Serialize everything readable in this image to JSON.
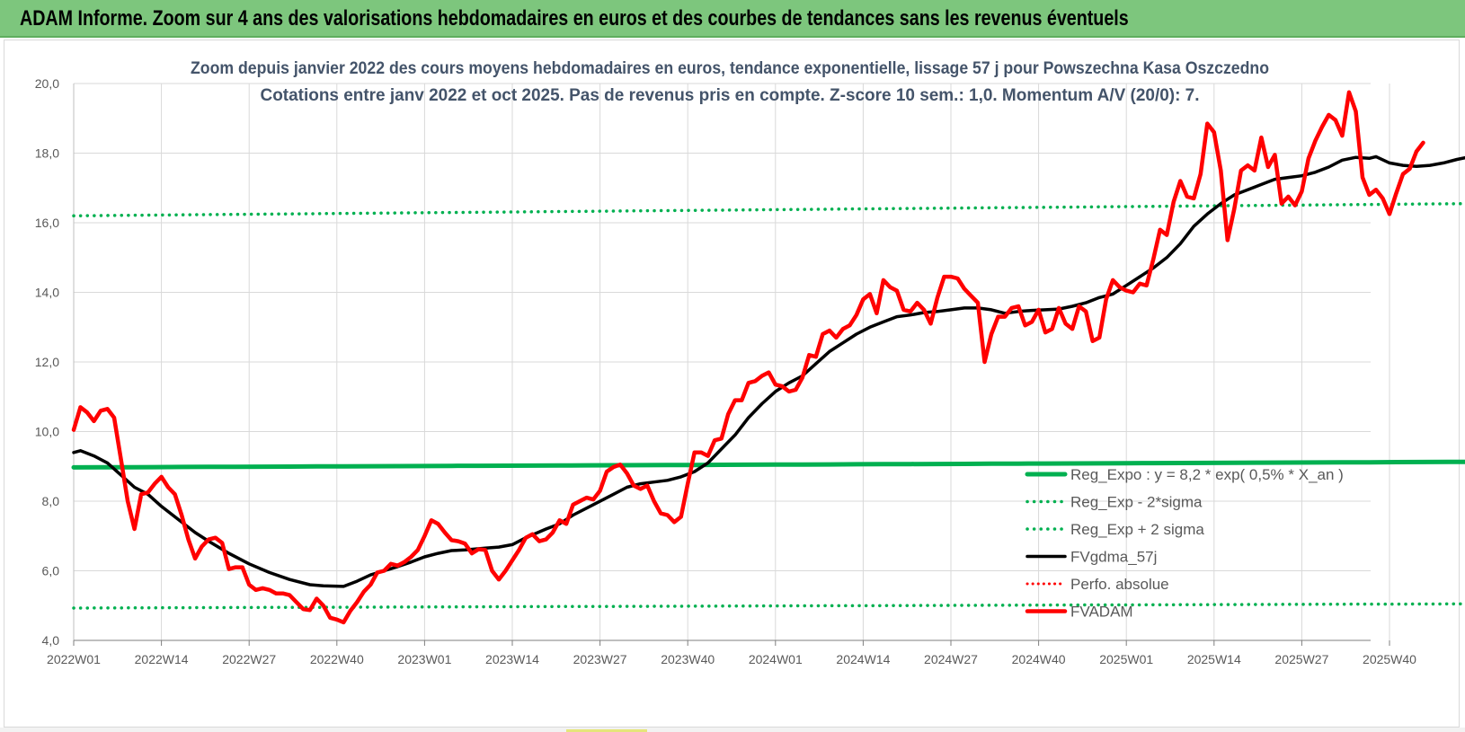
{
  "header": {
    "title": "ADAM Informe. Zoom sur 4 ans des valorisations hebdomadaires en euros et des courbes de tendances sans les revenus éventuels"
  },
  "colors": {
    "header_bg": "#7dc67d",
    "reg_expo": "#00b050",
    "fvgdma": "#000000",
    "fvadam": "#ff0000",
    "perfo": "#ff0000",
    "grid": "#d9d9d9"
  },
  "chart_data": {
    "type": "line",
    "title": "Zoom depuis janvier 2022 des cours moyens hebdomadaires en euros, tendance exponentielle, lissage 57 j pour Powszechna Kasa Oszczedno",
    "subtitle": "Cotations entre janv 2022 et oct 2025. Pas de revenus pris en compte. Z-score 10 sem.: 1,0. Momentum A/V (20/0): 7.",
    "xlabel": "",
    "ylabel": "",
    "ylim": [
      4.0,
      20.0
    ],
    "y_ticks": [
      "4,0",
      "6,0",
      "8,0",
      "10,0",
      "12,0",
      "14,0",
      "16,0",
      "18,0",
      "20,0"
    ],
    "x_ticks": [
      "2022W01",
      "2022W14",
      "2022W27",
      "2022W40",
      "2023W01",
      "2023W14",
      "2023W27",
      "2023W40",
      "2024W01",
      "2024W14",
      "2024W27",
      "2024W40",
      "2025W01",
      "2025W14",
      "2025W27",
      "2025W40"
    ],
    "grid": true,
    "legend_position": "bottom-right",
    "series": [
      {
        "name": "Reg_Expo : y = 8,2 * exp( 0,5% *  X_an )",
        "style": "solid-green",
        "start": 8.97,
        "end": 9.13
      },
      {
        "name": "Reg_Exp - 2*sigma",
        "style": "dotted-green",
        "start": 4.93,
        "end": 5.05
      },
      {
        "name": "Reg_Exp + 2 sigma",
        "style": "dotted-green",
        "start": 16.2,
        "end": 16.55
      },
      {
        "name": "FVgdma_57j",
        "style": "solid-black",
        "points": [
          [
            0,
            9.4
          ],
          [
            1,
            9.45
          ],
          [
            3,
            9.3
          ],
          [
            5,
            9.1
          ],
          [
            7,
            8.75
          ],
          [
            9,
            8.4
          ],
          [
            11,
            8.2
          ],
          [
            13,
            7.85
          ],
          [
            16,
            7.4
          ],
          [
            18,
            7.1
          ],
          [
            20,
            6.85
          ],
          [
            23,
            6.5
          ],
          [
            26,
            6.2
          ],
          [
            29,
            5.95
          ],
          [
            32,
            5.75
          ],
          [
            35,
            5.6
          ],
          [
            37,
            5.57
          ],
          [
            40,
            5.55
          ],
          [
            42,
            5.7
          ],
          [
            44,
            5.88
          ],
          [
            46,
            6.0
          ],
          [
            48,
            6.12
          ],
          [
            50,
            6.25
          ],
          [
            52,
            6.4
          ],
          [
            54,
            6.5
          ],
          [
            56,
            6.58
          ],
          [
            58,
            6.6
          ],
          [
            61,
            6.65
          ],
          [
            63,
            6.68
          ],
          [
            65,
            6.75
          ],
          [
            67,
            6.95
          ],
          [
            70,
            7.2
          ],
          [
            72,
            7.35
          ],
          [
            74,
            7.6
          ],
          [
            77,
            7.9
          ],
          [
            80,
            8.2
          ],
          [
            82,
            8.4
          ],
          [
            84,
            8.5
          ],
          [
            86,
            8.55
          ],
          [
            88,
            8.6
          ],
          [
            90,
            8.7
          ],
          [
            92,
            8.85
          ],
          [
            94,
            9.1
          ],
          [
            96,
            9.5
          ],
          [
            98,
            9.9
          ],
          [
            100,
            10.4
          ],
          [
            102,
            10.8
          ],
          [
            104,
            11.15
          ],
          [
            106,
            11.4
          ],
          [
            108,
            11.6
          ],
          [
            110,
            11.95
          ],
          [
            112,
            12.3
          ],
          [
            114,
            12.55
          ],
          [
            116,
            12.8
          ],
          [
            118,
            13.0
          ],
          [
            120,
            13.15
          ],
          [
            122,
            13.3
          ],
          [
            124,
            13.35
          ],
          [
            126,
            13.42
          ],
          [
            128,
            13.45
          ],
          [
            130,
            13.5
          ],
          [
            132,
            13.55
          ],
          [
            134,
            13.55
          ],
          [
            136,
            13.5
          ],
          [
            138,
            13.4
          ],
          [
            140,
            13.45
          ],
          [
            142,
            13.48
          ],
          [
            144,
            13.5
          ],
          [
            146,
            13.52
          ],
          [
            148,
            13.6
          ],
          [
            150,
            13.7
          ],
          [
            152,
            13.85
          ],
          [
            154,
            13.95
          ],
          [
            156,
            14.2
          ],
          [
            158,
            14.45
          ],
          [
            160,
            14.7
          ],
          [
            162,
            15.0
          ],
          [
            164,
            15.4
          ],
          [
            166,
            15.9
          ],
          [
            168,
            16.25
          ],
          [
            170,
            16.55
          ],
          [
            172,
            16.8
          ],
          [
            174,
            16.95
          ],
          [
            176,
            17.1
          ],
          [
            178,
            17.25
          ],
          [
            180,
            17.3
          ],
          [
            182,
            17.35
          ],
          [
            184,
            17.45
          ],
          [
            186,
            17.6
          ],
          [
            188,
            17.8
          ],
          [
            190,
            17.88
          ],
          [
            192,
            17.85
          ],
          [
            193,
            17.9
          ],
          [
            195,
            17.72
          ],
          [
            197,
            17.65
          ],
          [
            199,
            17.62
          ],
          [
            201,
            17.65
          ],
          [
            203,
            17.72
          ],
          [
            205,
            17.82
          ],
          [
            207,
            17.9
          ]
        ]
      },
      {
        "name": "Perfo. absolue",
        "style": "dotted-red",
        "points": []
      },
      {
        "name": "FVADAM",
        "style": "solid-red-thick",
        "points": [
          [
            0,
            10.05
          ],
          [
            1,
            10.7
          ],
          [
            2,
            10.55
          ],
          [
            3,
            10.3
          ],
          [
            4,
            10.6
          ],
          [
            5,
            10.65
          ],
          [
            6,
            10.4
          ],
          [
            7,
            9.2
          ],
          [
            8,
            8.0
          ],
          [
            9,
            7.2
          ],
          [
            10,
            8.2
          ],
          [
            11,
            8.25
          ],
          [
            12,
            8.5
          ],
          [
            13,
            8.7
          ],
          [
            14,
            8.4
          ],
          [
            15,
            8.2
          ],
          [
            16,
            7.6
          ],
          [
            17,
            6.9
          ],
          [
            18,
            6.35
          ],
          [
            19,
            6.7
          ],
          [
            20,
            6.9
          ],
          [
            21,
            6.95
          ],
          [
            22,
            6.8
          ],
          [
            23,
            6.05
          ],
          [
            24,
            6.1
          ],
          [
            25,
            6.1
          ],
          [
            26,
            5.6
          ],
          [
            27,
            5.45
          ],
          [
            28,
            5.5
          ],
          [
            29,
            5.45
          ],
          [
            30,
            5.35
          ],
          [
            31,
            5.35
          ],
          [
            32,
            5.3
          ],
          [
            33,
            5.1
          ],
          [
            34,
            4.9
          ],
          [
            35,
            4.87
          ],
          [
            36,
            5.2
          ],
          [
            37,
            5.0
          ],
          [
            38,
            4.65
          ],
          [
            39,
            4.6
          ],
          [
            40,
            4.52
          ],
          [
            41,
            4.85
          ],
          [
            42,
            5.1
          ],
          [
            43,
            5.4
          ],
          [
            44,
            5.6
          ],
          [
            45,
            5.95
          ],
          [
            46,
            6.0
          ],
          [
            47,
            6.2
          ],
          [
            48,
            6.15
          ],
          [
            49,
            6.25
          ],
          [
            50,
            6.4
          ],
          [
            51,
            6.6
          ],
          [
            52,
            7.0
          ],
          [
            53,
            7.45
          ],
          [
            54,
            7.35
          ],
          [
            55,
            7.1
          ],
          [
            56,
            6.88
          ],
          [
            57,
            6.85
          ],
          [
            58,
            6.78
          ],
          [
            59,
            6.5
          ],
          [
            60,
            6.62
          ],
          [
            61,
            6.6
          ],
          [
            62,
            6.0
          ],
          [
            63,
            5.75
          ],
          [
            64,
            6.0
          ],
          [
            65,
            6.3
          ],
          [
            66,
            6.6
          ],
          [
            67,
            6.95
          ],
          [
            68,
            7.05
          ],
          [
            69,
            6.85
          ],
          [
            70,
            6.9
          ],
          [
            71,
            7.1
          ],
          [
            72,
            7.45
          ],
          [
            73,
            7.35
          ],
          [
            74,
            7.9
          ],
          [
            75,
            8.0
          ],
          [
            76,
            8.1
          ],
          [
            77,
            8.05
          ],
          [
            78,
            8.3
          ],
          [
            79,
            8.85
          ],
          [
            80,
            8.98
          ],
          [
            81,
            9.05
          ],
          [
            82,
            8.8
          ],
          [
            83,
            8.45
          ],
          [
            84,
            8.35
          ],
          [
            85,
            8.45
          ],
          [
            86,
            8.0
          ],
          [
            87,
            7.65
          ],
          [
            88,
            7.6
          ],
          [
            89,
            7.4
          ],
          [
            90,
            7.55
          ],
          [
            91,
            8.5
          ],
          [
            92,
            9.4
          ],
          [
            93,
            9.4
          ],
          [
            94,
            9.3
          ],
          [
            95,
            9.75
          ],
          [
            96,
            9.8
          ],
          [
            97,
            10.5
          ],
          [
            98,
            10.9
          ],
          [
            99,
            10.9
          ],
          [
            100,
            11.4
          ],
          [
            101,
            11.45
          ],
          [
            102,
            11.6
          ],
          [
            103,
            11.7
          ],
          [
            104,
            11.35
          ],
          [
            105,
            11.3
          ],
          [
            106,
            11.15
          ],
          [
            107,
            11.2
          ],
          [
            108,
            11.55
          ],
          [
            109,
            12.2
          ],
          [
            110,
            12.15
          ],
          [
            111,
            12.8
          ],
          [
            112,
            12.9
          ],
          [
            113,
            12.7
          ],
          [
            114,
            12.95
          ],
          [
            115,
            13.05
          ],
          [
            116,
            13.35
          ],
          [
            117,
            13.8
          ],
          [
            118,
            13.95
          ],
          [
            119,
            13.4
          ],
          [
            120,
            14.35
          ],
          [
            121,
            14.15
          ],
          [
            122,
            14.05
          ],
          [
            123,
            13.5
          ],
          [
            124,
            13.45
          ],
          [
            125,
            13.7
          ],
          [
            126,
            13.5
          ],
          [
            127,
            13.1
          ],
          [
            128,
            13.85
          ],
          [
            129,
            14.45
          ],
          [
            130,
            14.45
          ],
          [
            131,
            14.4
          ],
          [
            132,
            14.1
          ],
          [
            133,
            13.9
          ],
          [
            134,
            13.7
          ],
          [
            135,
            12.0
          ],
          [
            136,
            12.8
          ],
          [
            137,
            13.3
          ],
          [
            138,
            13.3
          ],
          [
            139,
            13.55
          ],
          [
            140,
            13.6
          ],
          [
            141,
            13.05
          ],
          [
            142,
            13.15
          ],
          [
            143,
            13.5
          ],
          [
            144,
            12.85
          ],
          [
            145,
            12.95
          ],
          [
            146,
            13.55
          ],
          [
            147,
            13.1
          ],
          [
            148,
            12.95
          ],
          [
            149,
            13.6
          ],
          [
            150,
            13.45
          ],
          [
            151,
            12.6
          ],
          [
            152,
            12.7
          ],
          [
            153,
            13.8
          ],
          [
            154,
            14.35
          ],
          [
            155,
            14.15
          ],
          [
            156,
            14.05
          ],
          [
            157,
            14.0
          ],
          [
            158,
            14.25
          ],
          [
            159,
            14.2
          ],
          [
            160,
            14.95
          ],
          [
            161,
            15.8
          ],
          [
            162,
            15.65
          ],
          [
            163,
            16.6
          ],
          [
            164,
            17.2
          ],
          [
            165,
            16.75
          ],
          [
            166,
            16.7
          ],
          [
            167,
            17.4
          ],
          [
            168,
            18.85
          ],
          [
            169,
            18.6
          ],
          [
            170,
            17.5
          ],
          [
            171,
            15.5
          ],
          [
            172,
            16.4
          ],
          [
            173,
            17.5
          ],
          [
            174,
            17.65
          ],
          [
            175,
            17.5
          ],
          [
            176,
            18.45
          ],
          [
            177,
            17.6
          ],
          [
            178,
            17.95
          ],
          [
            179,
            16.55
          ],
          [
            180,
            16.75
          ],
          [
            181,
            16.5
          ],
          [
            182,
            16.9
          ],
          [
            183,
            17.85
          ],
          [
            184,
            18.35
          ],
          [
            185,
            18.75
          ],
          [
            186,
            19.1
          ],
          [
            187,
            18.95
          ],
          [
            188,
            18.5
          ],
          [
            189,
            19.75
          ],
          [
            190,
            19.2
          ],
          [
            191,
            17.3
          ],
          [
            192,
            16.8
          ],
          [
            193,
            16.95
          ],
          [
            194,
            16.7
          ],
          [
            195,
            16.25
          ],
          [
            196,
            16.85
          ],
          [
            197,
            17.4
          ],
          [
            198,
            17.55
          ],
          [
            199,
            18.05
          ],
          [
            200,
            18.3
          ]
        ]
      }
    ]
  }
}
